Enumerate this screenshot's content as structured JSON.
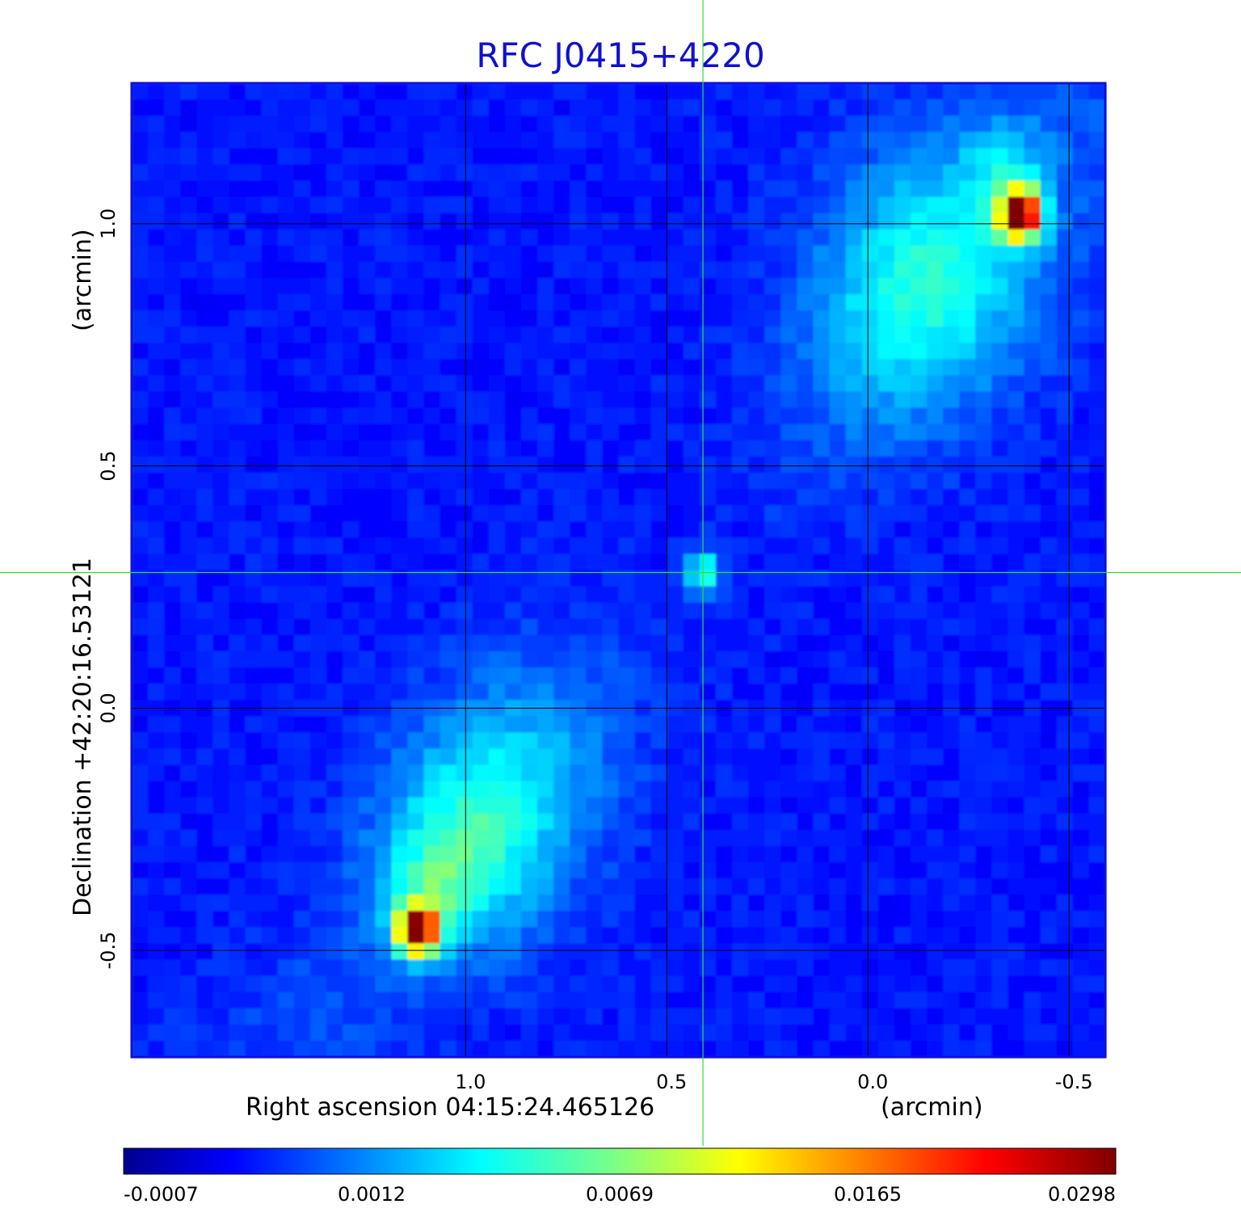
{
  "chart_data": {
    "type": "heatmap",
    "title": "RFC J0415+4220",
    "xlabel": "Right ascension  04:15:24.465126",
    "xunit": "(arcmin)",
    "ylabel": "Declination  +42:20:16.53121",
    "yunit": "(arcmin)",
    "xlim": [
      1.83,
      -0.59
    ],
    "ylim": [
      -0.72,
      1.29
    ],
    "x_ticks": [
      1.0,
      0.5,
      0.0,
      -0.5
    ],
    "x_tick_labels": [
      "1.0",
      "0.5",
      "0.0",
      "-0.5"
    ],
    "y_ticks": [
      -0.5,
      0.0,
      0.5,
      1.0
    ],
    "y_tick_labels": [
      "-0.5",
      "0.0",
      "0.5",
      "1.0"
    ],
    "grid": true,
    "crosshair": {
      "x": 0.41,
      "y": 0.28
    },
    "sources": [
      {
        "name": "core",
        "x": 0.41,
        "y": 0.28,
        "peak": 0.006
      },
      {
        "name": "north-west hotspot",
        "x": -0.38,
        "y": 1.02,
        "peak": 0.0298
      },
      {
        "name": "south-east hotspot",
        "x": 1.12,
        "y": -0.46,
        "peak": 0.0298
      }
    ],
    "colorbar": {
      "colormap": "jet",
      "tick_labels": [
        "-0.0007",
        "0.0012",
        "0.0069",
        "0.0165",
        "0.0298"
      ],
      "min": -0.0007,
      "max": 0.0298
    }
  },
  "colors": {
    "title": "#1010d0",
    "frame": "#1010d0",
    "crosshair": "#33dd33",
    "grid": "#000000"
  }
}
